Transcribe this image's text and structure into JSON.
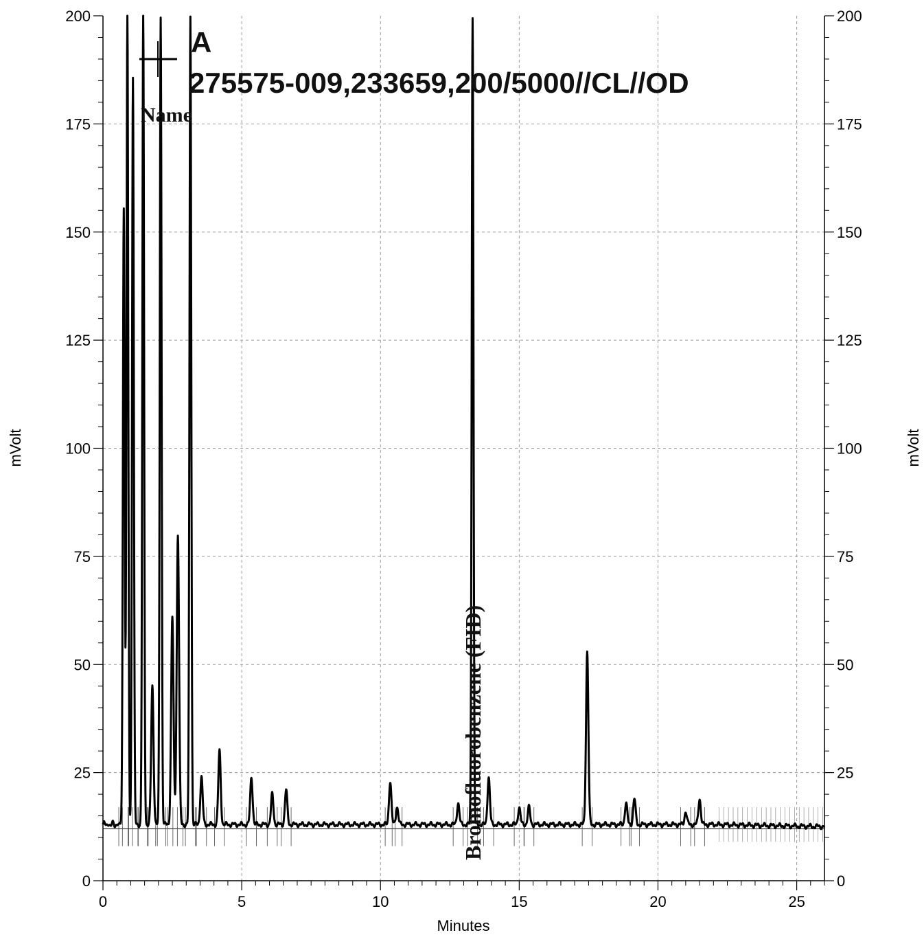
{
  "chart_data": {
    "type": "line",
    "xlabel": "Minutes",
    "ylabel": "mVolt",
    "ylabel_right": "mVolt",
    "xlim": [
      0,
      26
    ],
    "ylim": [
      0,
      200
    ],
    "x_ticks": [
      "0",
      "5",
      "10",
      "15",
      "20",
      "25"
    ],
    "y_ticks": [
      "0",
      "25",
      "50",
      "75",
      "100",
      "125",
      "150",
      "175",
      "200"
    ],
    "grid": "dashed",
    "legend": {
      "position": "top-left",
      "series_label": "A",
      "sample_id": "275575-009,233659,200/5000//CL//OD",
      "column_header": "Name"
    },
    "baseline": 13,
    "peaks": [
      {
        "rt": 0.75,
        "height": 156
      },
      {
        "rt": 0.88,
        "height": 200
      },
      {
        "rt": 1.08,
        "height": 186
      },
      {
        "rt": 1.45,
        "height": 200
      },
      {
        "rt": 1.78,
        "height": 45
      },
      {
        "rt": 2.08,
        "height": 200
      },
      {
        "rt": 2.5,
        "height": 61
      },
      {
        "rt": 2.7,
        "height": 80
      },
      {
        "rt": 3.15,
        "height": 200
      },
      {
        "rt": 3.55,
        "height": 24
      },
      {
        "rt": 4.2,
        "height": 30
      },
      {
        "rt": 5.35,
        "height": 24
      },
      {
        "rt": 6.1,
        "height": 20
      },
      {
        "rt": 6.6,
        "height": 21
      },
      {
        "rt": 10.35,
        "height": 23
      },
      {
        "rt": 10.6,
        "height": 17
      },
      {
        "rt": 12.8,
        "height": 18
      },
      {
        "rt": 13.32,
        "height": 200,
        "label": "Bromofluorobenzene (FID)"
      },
      {
        "rt": 13.9,
        "height": 24
      },
      {
        "rt": 15.0,
        "height": 17
      },
      {
        "rt": 15.35,
        "height": 17
      },
      {
        "rt": 17.45,
        "height": 53
      },
      {
        "rt": 18.85,
        "height": 18
      },
      {
        "rt": 19.15,
        "height": 19
      },
      {
        "rt": 21.0,
        "height": 16
      },
      {
        "rt": 21.5,
        "height": 19
      },
      {
        "rt": 25.9,
        "height": 12.5
      }
    ]
  },
  "peak_label": "Bromofluorobenzene (FID)"
}
